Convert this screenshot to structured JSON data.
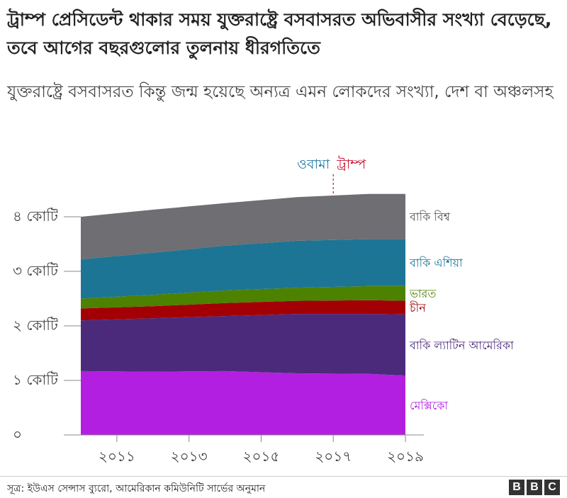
{
  "header": {
    "title": "ট্রাম্প প্রেসিডেন্ট থাকার সময় যুক্তরাষ্ট্রে বসবাসরত অভিবাসীর সংখ্যা বেড়েছে, তবে আগের বছরগুলোর তুলনায় ধীরগতিতে",
    "subtitle": "যুক্তরাষ্ট্রে বসবাসরত কিন্তু জন্ম হয়েছে অন্যত্র এমন লোকদের সংখ্যা, দেশ বা অঞ্চলসহ"
  },
  "footer": {
    "source": "সূত্র: ইউএস সেন্সাস ব্যুরো, আমেরিকান কমিউনিটি সার্ভের অনুমান",
    "logo_letters": [
      "B",
      "B",
      "C"
    ]
  },
  "chart_data": {
    "type": "area",
    "stacked": true,
    "x": [
      2010,
      2012,
      2014,
      2016,
      2018,
      2019
    ],
    "xticks": [
      2011,
      2013,
      2015,
      2017,
      2019
    ],
    "xtick_labels": [
      "২০১১",
      "২০১৩",
      "২০১৫",
      "২০১৭",
      "২০১৯"
    ],
    "ylim": [
      0,
      40000000
    ],
    "yticks": [
      0,
      10000000,
      20000000,
      30000000,
      40000000
    ],
    "ytick_labels": [
      "০",
      "১ কোটি",
      "২ কোটি",
      "৩ কোটি",
      "৪ কোটি"
    ],
    "grid": false,
    "annotations": {
      "marker_x": 2017,
      "left_label": "ওবামা",
      "right_label": "ট্রাম্প",
      "left_color": "#1f78a0",
      "right_color": "#c8102e"
    },
    "series": [
      {
        "name": "মেক্সিকো",
        "color": "#b31fe0",
        "label_color": "#b31fe0",
        "values": [
          11700000,
          11600000,
          11700000,
          11300000,
          11200000,
          10900000
        ]
      },
      {
        "name": "বাকি ল্যাটিন আমেরিকা",
        "color": "#4b2a7c",
        "label_color": "#4b2a7c",
        "values": [
          9300000,
          9800000,
          10100000,
          10900000,
          11000000,
          11200000
        ]
      },
      {
        "name": "চীন",
        "color": "#a30006",
        "label_color": "#a30006",
        "values": [
          2200000,
          2200000,
          2400000,
          2400000,
          2500000,
          2500000
        ]
      },
      {
        "name": "ভারত",
        "color": "#4d8100",
        "label_color": "#4d8100",
        "values": [
          1800000,
          2100000,
          2300000,
          2400000,
          2600000,
          2700000
        ]
      },
      {
        "name": "বাকি এশিয়া",
        "color": "#1c7595",
        "label_color": "#1c7595",
        "values": [
          7200000,
          7700000,
          8200000,
          8600000,
          8600000,
          8600000
        ]
      },
      {
        "name": "বাকি বিশ্ব",
        "color": "#6e6e73",
        "label_color": "#555555",
        "values": [
          7800000,
          7900000,
          7800000,
          8000000,
          8300000,
          8300000
        ]
      }
    ]
  }
}
